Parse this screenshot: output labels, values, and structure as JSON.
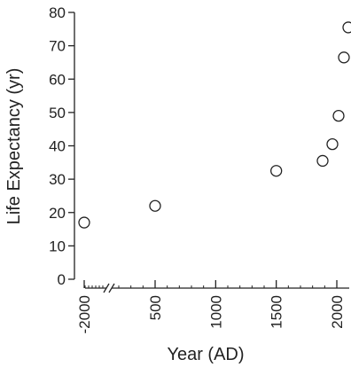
{
  "chart_data": {
    "type": "scatter",
    "title": "",
    "xlabel": "Year (AD)",
    "ylabel": "Life Expectancy (yr)",
    "x_axis_break": "between -2000 and 500",
    "x_ticks": [
      -2000,
      500,
      1000,
      1500,
      2000
    ],
    "x_tick_labels": [
      "-2000",
      "500",
      "1000",
      "1500",
      "2000"
    ],
    "ylim": [
      0,
      80
    ],
    "y_ticks": [
      0,
      10,
      20,
      30,
      40,
      50,
      60,
      70,
      80
    ],
    "y_tick_labels": [
      "0",
      "10",
      "20",
      "30",
      "40",
      "50",
      "60",
      "70",
      "80"
    ],
    "grid": false,
    "marker": "open-circle",
    "color": "#222222",
    "points": [
      {
        "x": -2000,
        "y": 17
      },
      {
        "x": 500,
        "y": 22
      },
      {
        "x": 1500,
        "y": 32.5
      },
      {
        "x": 1900,
        "y": 35.5
      },
      {
        "x": 1950,
        "y": 40.5
      },
      {
        "x": 1980,
        "y": 49
      },
      {
        "x": 2000,
        "y": 66.5
      },
      {
        "x": 2050,
        "y": 75.5
      }
    ]
  }
}
